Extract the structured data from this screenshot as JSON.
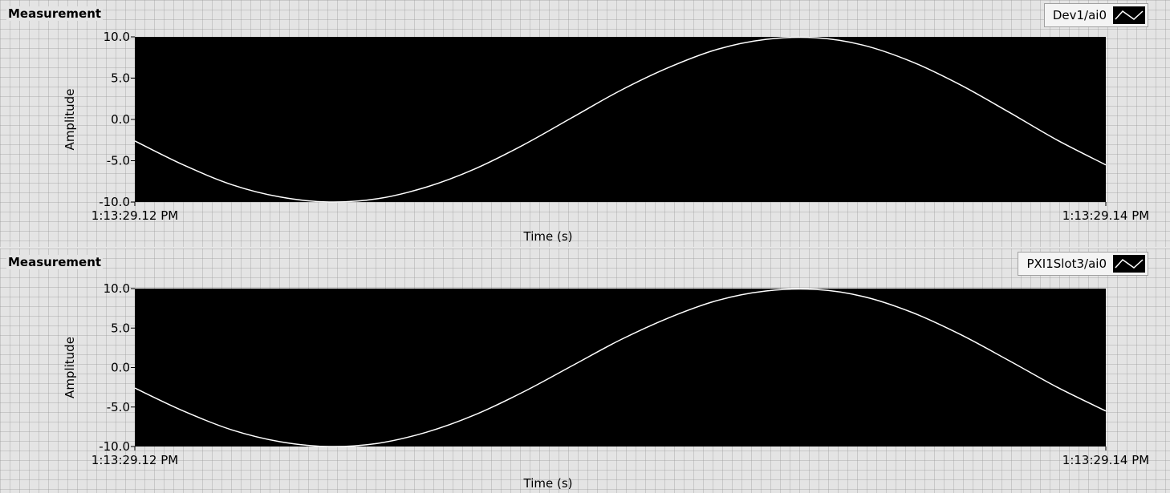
{
  "chart_data": [
    {
      "type": "line",
      "label": "Measurement",
      "legend": "Dev1/ai0",
      "xlabel": "Time (s)",
      "ylabel": "Amplitude",
      "x_start_label": "1:13:29.12 PM",
      "x_end_label": "1:13:29.14 PM",
      "ylim": [
        -10,
        10
      ],
      "yticks": [
        "10.0",
        "5.0",
        "0.0",
        "-5.0",
        "-10.0"
      ],
      "series": [
        {
          "x_fraction": [
            0.0,
            0.05,
            0.1,
            0.15,
            0.2,
            0.25,
            0.3,
            0.35,
            0.4,
            0.45,
            0.5,
            0.55,
            0.6,
            0.65,
            0.7,
            0.75,
            0.8,
            0.85,
            0.9,
            0.95,
            1.0
          ],
          "values": [
            -2.6,
            -5.5,
            -7.9,
            -9.4,
            -10.0,
            -9.6,
            -8.2,
            -6.0,
            -3.1,
            0.2,
            3.5,
            6.3,
            8.5,
            9.7,
            9.9,
            9.0,
            7.0,
            4.2,
            0.9,
            -2.5,
            -5.5
          ]
        }
      ],
      "colors": {
        "plot_bg": "#000000",
        "trace": "#ffffff"
      }
    },
    {
      "type": "line",
      "label": "Measurement",
      "legend": "PXI1Slot3/ai0",
      "xlabel": "Time (s)",
      "ylabel": "Amplitude",
      "x_start_label": "1:13:29.12 PM",
      "x_end_label": "1:13:29.14 PM",
      "ylim": [
        -10,
        10
      ],
      "yticks": [
        "10.0",
        "5.0",
        "0.0",
        "-5.0",
        "-10.0"
      ],
      "series": [
        {
          "x_fraction": [
            0.0,
            0.05,
            0.1,
            0.15,
            0.2,
            0.25,
            0.3,
            0.35,
            0.4,
            0.45,
            0.5,
            0.55,
            0.6,
            0.65,
            0.7,
            0.75,
            0.8,
            0.85,
            0.9,
            0.95,
            1.0
          ],
          "values": [
            -2.6,
            -5.5,
            -7.9,
            -9.4,
            -10.0,
            -9.6,
            -8.2,
            -6.0,
            -3.1,
            0.2,
            3.5,
            6.3,
            8.5,
            9.7,
            9.9,
            9.0,
            7.0,
            4.2,
            0.9,
            -2.5,
            -5.5
          ]
        }
      ],
      "colors": {
        "plot_bg": "#000000",
        "trace": "#ffffff"
      }
    }
  ]
}
